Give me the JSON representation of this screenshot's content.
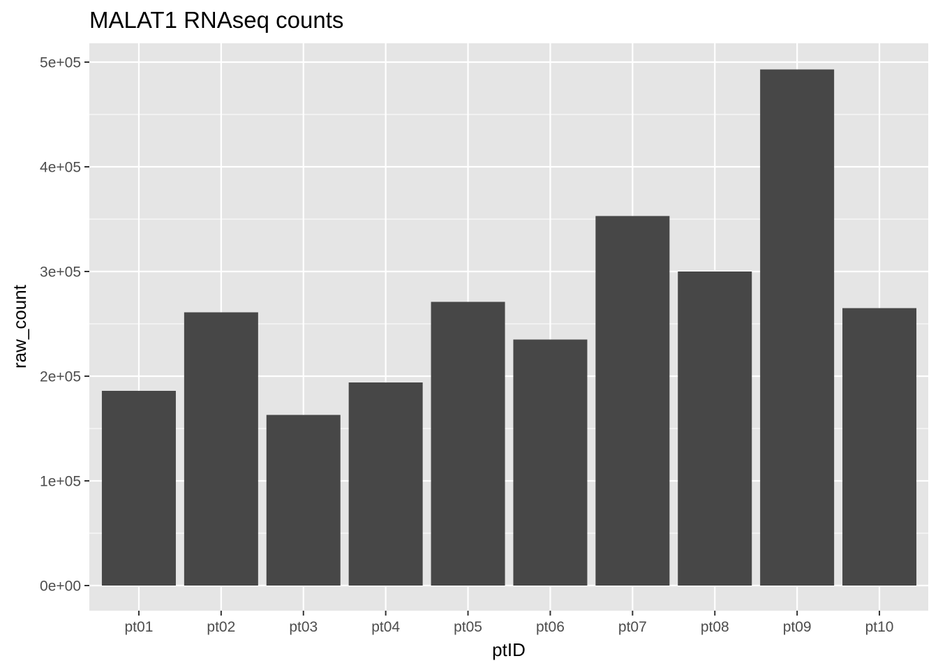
{
  "chart_data": {
    "type": "bar",
    "title": "MALAT1 RNAseq counts",
    "xlabel": "ptID",
    "ylabel": "raw_count",
    "categories": [
      "pt01",
      "pt02",
      "pt03",
      "pt04",
      "pt05",
      "pt06",
      "pt07",
      "pt08",
      "pt09",
      "pt10"
    ],
    "values": [
      186000,
      261000,
      163000,
      194000,
      271000,
      235000,
      353000,
      300000,
      493000,
      265000
    ],
    "ylim": [
      0,
      500000
    ],
    "yticks": [
      {
        "value": 0,
        "label": "0e+00"
      },
      {
        "value": 100000,
        "label": "1e+05"
      },
      {
        "value": 200000,
        "label": "2e+05"
      },
      {
        "value": 300000,
        "label": "3e+05"
      },
      {
        "value": 400000,
        "label": "4e+05"
      },
      {
        "value": 500000,
        "label": "5e+05"
      }
    ],
    "grid": true,
    "legend": "none",
    "colors": {
      "panel_background": "#e5e5e5",
      "gridline": "#ffffff",
      "bar_fill": "#474747",
      "tick_text": "#4d4d4d",
      "tick_mark": "#333333"
    }
  }
}
